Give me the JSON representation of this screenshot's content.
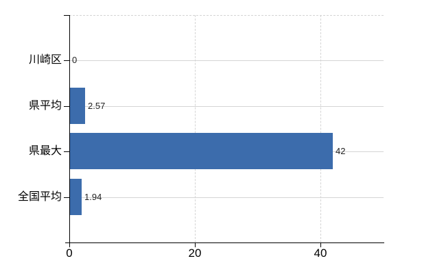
{
  "window": {
    "background": "#ffffff"
  },
  "chart_data": {
    "type": "bar",
    "orientation": "horizontal",
    "title": "",
    "categories": [
      "川崎区",
      "県平均",
      "県最大",
      "全国平均"
    ],
    "values": [
      0,
      2.57,
      42,
      1.94
    ],
    "value_labels": [
      "0",
      "2.57",
      "42",
      "1.94"
    ],
    "x_ticks": [
      {
        "value": 0,
        "label": "0"
      },
      {
        "value": 20,
        "label": "20"
      },
      {
        "value": 40,
        "label": "40"
      }
    ],
    "xlim": [
      0,
      50.2
    ],
    "xlabel": "",
    "ylabel": "",
    "legend": "none",
    "grid": {
      "horizontal": "solid line at each category row",
      "vertical": "dashed lines at ticks 20 and 40",
      "top_frame": "dashed"
    },
    "colors": {
      "bar": "#3c6cac",
      "grid": "#d4d4d4",
      "axis": "#000000",
      "category_label": "#000000",
      "axis_tick_label": "#000000",
      "value_label": "#222222"
    }
  }
}
